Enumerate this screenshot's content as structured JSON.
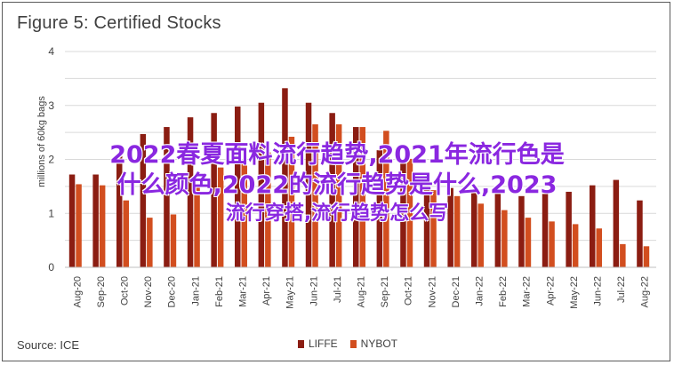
{
  "header": {
    "title": "Figure 5: Certified Stocks"
  },
  "footer": {
    "source": "Source: ICE"
  },
  "overlay": {
    "line1": "2022春夏面料流行趋势,2021年流行色是",
    "line2": "什么颜色,2022的流行趋势是什么,2023",
    "line3": "流行穿搭,流行趋势怎么写"
  },
  "colors": {
    "LIFFE": "#8b1d12",
    "NYBOT": "#d24e1f",
    "grid": "#d9d9d9",
    "axis": "#404040"
  },
  "chart_data": {
    "type": "bar",
    "title": "Figure 5: Certified Stocks",
    "ylabel": "millions of 60kg bags",
    "xlabel": "",
    "ylim": [
      0,
      4
    ],
    "yticks": [
      0,
      0.5,
      1,
      1.5,
      2,
      2.5,
      3,
      3.5,
      4
    ],
    "grid": true,
    "legend_position": "bottom",
    "categories": [
      "Aug-20",
      "Sep-20",
      "Oct-20",
      "Nov-20",
      "Dec-20",
      "Jan-21",
      "Feb-21",
      "Mar-21",
      "Apr-21",
      "May-21",
      "Jun-21",
      "Jul-21",
      "Aug-21",
      "Sep-21",
      "Oct-21",
      "Nov-21",
      "Dec-21",
      "Jan-22",
      "Feb-22",
      "Mar-22",
      "Apr-22",
      "May-22",
      "Jun-22",
      "Jul-22",
      "Aug-22"
    ],
    "series": [
      {
        "name": "LIFFE",
        "values": [
          1.72,
          1.72,
          2.07,
          2.47,
          2.6,
          2.78,
          2.86,
          2.98,
          3.05,
          3.32,
          3.05,
          2.86,
          2.6,
          2.17,
          1.97,
          1.57,
          1.47,
          1.42,
          1.38,
          1.32,
          1.36,
          1.4,
          1.52,
          1.62,
          1.24
        ]
      },
      {
        "name": "NYBOT",
        "values": [
          1.54,
          1.52,
          1.24,
          0.92,
          0.98,
          1.5,
          1.85,
          1.95,
          2.13,
          2.42,
          2.65,
          2.65,
          2.6,
          2.53,
          2.01,
          1.43,
          1.32,
          1.18,
          1.06,
          0.92,
          0.85,
          0.8,
          0.72,
          0.43,
          0.39
        ]
      }
    ]
  }
}
